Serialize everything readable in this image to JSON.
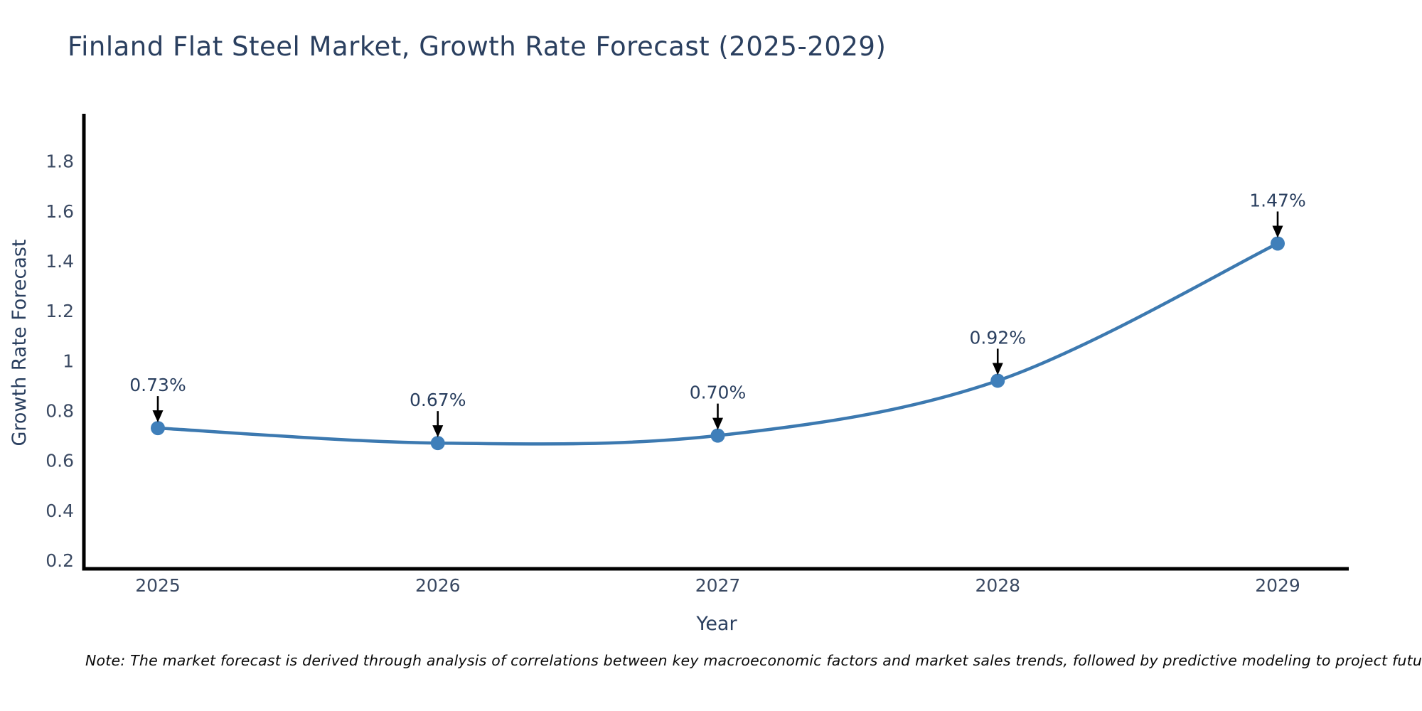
{
  "title": "Finland Flat Steel Market, Growth Rate Forecast (2025-2029)",
  "note": "Note: The market forecast is derived through analysis of correlations between key macroeconomic factors and market sales trends, followed by predictive modeling to project future sales",
  "colors": {
    "line": "#3c79b0",
    "marker": "#3f7fba",
    "axis_line": "#000000",
    "text": "#2a3f5f",
    "tick_text": "#3b4a63",
    "annotation_text": "#2a3f5f",
    "arrow": "#000000",
    "background": "#ffffff"
  },
  "chart_data": {
    "type": "line",
    "title": "Finland Flat Steel Market, Growth Rate Forecast (2025-2029)",
    "x": [
      "2025",
      "2026",
      "2027",
      "2028",
      "2029"
    ],
    "values": [
      0.73,
      0.67,
      0.7,
      0.92,
      1.47
    ],
    "point_labels": [
      "0.73%",
      "0.67%",
      "0.70%",
      "0.92%",
      "1.47%"
    ],
    "xlabel": "Year",
    "ylabel": "Growth Rate Forecast",
    "yticks": [
      0.2,
      0.4,
      0.6,
      0.8,
      1,
      1.2,
      1.4,
      1.6,
      1.8
    ],
    "ylim": [
      0.166,
      1.99
    ],
    "line_shape": "spline",
    "grid": false,
    "legend_position": "none",
    "annotations": "arrow-down-to-each-point"
  }
}
